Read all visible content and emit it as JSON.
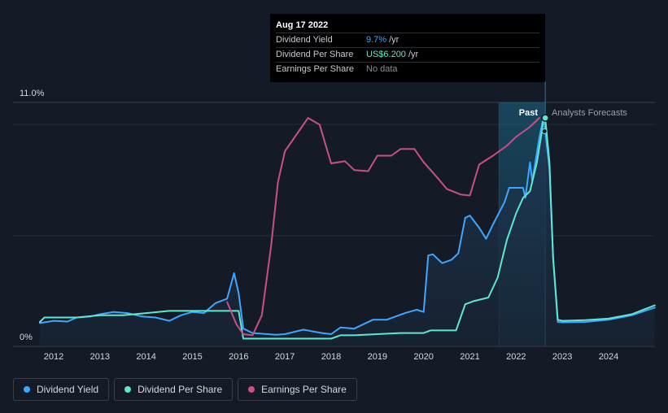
{
  "tooltip": {
    "date": "Aug 17 2022",
    "rows": [
      {
        "label": "Dividend Yield",
        "value": "9.7%",
        "unit": "/yr"
      },
      {
        "label": "Dividend Per Share",
        "value": "US$6.200",
        "unit": "/yr"
      },
      {
        "label": "Earnings Per Share",
        "value": "No data",
        "unit": ""
      }
    ]
  },
  "labels": {
    "past": "Past",
    "forecast": "Analysts Forecasts"
  },
  "legend": [
    {
      "label": "Dividend Yield",
      "color": "#3ea6ff"
    },
    {
      "label": "Dividend Per Share",
      "color": "#5de8d0"
    },
    {
      "label": "Earnings Per Share",
      "color": "#c8508a"
    }
  ],
  "chart_data": {
    "type": "line",
    "x_ticks": [
      "2012",
      "2013",
      "2014",
      "2015",
      "2016",
      "2017",
      "2018",
      "2019",
      "2020",
      "2021",
      "2022",
      "2023",
      "2024"
    ],
    "y_tick_labels": [
      {
        "value": 11,
        "label": "11.0%"
      },
      {
        "value": 0,
        "label": "0%"
      }
    ],
    "ylim": [
      0,
      11
    ],
    "xlim": [
      2011.7,
      2025.0
    ],
    "past_end": 2022.63,
    "highlight_start": 2021.63,
    "series": [
      {
        "name": "Dividend Yield",
        "color": "#3ea6ff",
        "fill": true,
        "points": [
          [
            2011.7,
            1.05
          ],
          [
            2012.0,
            1.15
          ],
          [
            2012.3,
            1.12
          ],
          [
            2012.5,
            1.3
          ],
          [
            2012.8,
            1.35
          ],
          [
            2013.0,
            1.45
          ],
          [
            2013.3,
            1.55
          ],
          [
            2013.6,
            1.5
          ],
          [
            2013.9,
            1.35
          ],
          [
            2014.2,
            1.3
          ],
          [
            2014.5,
            1.15
          ],
          [
            2014.75,
            1.4
          ],
          [
            2015.0,
            1.55
          ],
          [
            2015.25,
            1.5
          ],
          [
            2015.5,
            1.95
          ],
          [
            2015.75,
            2.15
          ],
          [
            2015.9,
            3.3
          ],
          [
            2016.0,
            2.4
          ],
          [
            2016.1,
            0.8
          ],
          [
            2016.3,
            0.6
          ],
          [
            2016.8,
            0.52
          ],
          [
            2017.0,
            0.55
          ],
          [
            2017.4,
            0.75
          ],
          [
            2017.8,
            0.6
          ],
          [
            2018.0,
            0.55
          ],
          [
            2018.2,
            0.85
          ],
          [
            2018.5,
            0.8
          ],
          [
            2018.9,
            1.2
          ],
          [
            2019.2,
            1.2
          ],
          [
            2019.6,
            1.5
          ],
          [
            2019.85,
            1.65
          ],
          [
            2020.0,
            1.55
          ],
          [
            2020.1,
            4.1
          ],
          [
            2020.2,
            4.15
          ],
          [
            2020.4,
            3.75
          ],
          [
            2020.6,
            3.9
          ],
          [
            2020.75,
            4.2
          ],
          [
            2020.9,
            5.8
          ],
          [
            2021.0,
            5.9
          ],
          [
            2021.2,
            5.35
          ],
          [
            2021.35,
            4.85
          ],
          [
            2021.5,
            5.5
          ],
          [
            2021.75,
            6.5
          ],
          [
            2021.85,
            7.15
          ],
          [
            2022.15,
            7.15
          ],
          [
            2022.2,
            6.7
          ],
          [
            2022.3,
            8.3
          ],
          [
            2022.35,
            7.45
          ],
          [
            2022.5,
            9.4
          ],
          [
            2022.6,
            10.4
          ],
          [
            2022.63,
            9.7
          ],
          [
            2022.72,
            8.0
          ],
          [
            2022.8,
            4.0
          ],
          [
            2022.9,
            1.1
          ],
          [
            2023.0,
            1.08
          ],
          [
            2023.5,
            1.1
          ],
          [
            2024.0,
            1.2
          ],
          [
            2024.5,
            1.4
          ],
          [
            2025.0,
            1.75
          ]
        ]
      },
      {
        "name": "Dividend Per Share",
        "color": "#5de8d0",
        "fill": false,
        "points": [
          [
            2011.7,
            1.1
          ],
          [
            2011.8,
            1.3
          ],
          [
            2012.5,
            1.3
          ],
          [
            2013.0,
            1.4
          ],
          [
            2013.5,
            1.4
          ],
          [
            2014.0,
            1.5
          ],
          [
            2014.5,
            1.6
          ],
          [
            2015.0,
            1.6
          ],
          [
            2015.5,
            1.6
          ],
          [
            2016.0,
            1.6
          ],
          [
            2016.1,
            0.35
          ],
          [
            2016.5,
            0.35
          ],
          [
            2017.0,
            0.35
          ],
          [
            2017.5,
            0.35
          ],
          [
            2018.0,
            0.35
          ],
          [
            2018.2,
            0.5
          ],
          [
            2018.5,
            0.5
          ],
          [
            2019.0,
            0.55
          ],
          [
            2019.5,
            0.6
          ],
          [
            2020.0,
            0.6
          ],
          [
            2020.15,
            0.72
          ],
          [
            2020.5,
            0.72
          ],
          [
            2020.7,
            0.72
          ],
          [
            2020.8,
            1.3
          ],
          [
            2020.9,
            1.9
          ],
          [
            2021.1,
            2.05
          ],
          [
            2021.4,
            2.2
          ],
          [
            2021.6,
            3.1
          ],
          [
            2021.8,
            4.8
          ],
          [
            2022.0,
            6.0
          ],
          [
            2022.15,
            6.7
          ],
          [
            2022.3,
            7.0
          ],
          [
            2022.45,
            8.3
          ],
          [
            2022.55,
            9.6
          ],
          [
            2022.6,
            10.4
          ],
          [
            2022.63,
            10.3
          ],
          [
            2022.72,
            8.3
          ],
          [
            2022.8,
            4.0
          ],
          [
            2022.9,
            1.2
          ],
          [
            2023.0,
            1.15
          ],
          [
            2023.5,
            1.18
          ],
          [
            2024.0,
            1.25
          ],
          [
            2024.5,
            1.45
          ],
          [
            2025.0,
            1.85
          ]
        ]
      },
      {
        "name": "Earnings Per Share",
        "color": "#c8508a",
        "fill": false,
        "points": [
          [
            2015.75,
            2.0
          ],
          [
            2015.95,
            1.0
          ],
          [
            2016.1,
            0.55
          ],
          [
            2016.3,
            0.5
          ],
          [
            2016.5,
            1.4
          ],
          [
            2016.7,
            4.5
          ],
          [
            2016.85,
            7.4
          ],
          [
            2017.0,
            8.8
          ],
          [
            2017.3,
            9.7
          ],
          [
            2017.5,
            10.3
          ],
          [
            2017.75,
            10.0
          ],
          [
            2018.0,
            8.25
          ],
          [
            2018.3,
            8.35
          ],
          [
            2018.5,
            7.95
          ],
          [
            2018.8,
            7.9
          ],
          [
            2019.0,
            8.6
          ],
          [
            2019.3,
            8.6
          ],
          [
            2019.5,
            8.9
          ],
          [
            2019.8,
            8.9
          ],
          [
            2020.0,
            8.3
          ],
          [
            2020.3,
            7.6
          ],
          [
            2020.5,
            7.1
          ],
          [
            2020.8,
            6.85
          ],
          [
            2021.0,
            6.8
          ],
          [
            2021.2,
            8.2
          ],
          [
            2021.5,
            8.6
          ],
          [
            2021.8,
            9.05
          ],
          [
            2022.0,
            9.45
          ],
          [
            2022.3,
            9.9
          ],
          [
            2022.5,
            10.3
          ]
        ]
      }
    ]
  }
}
